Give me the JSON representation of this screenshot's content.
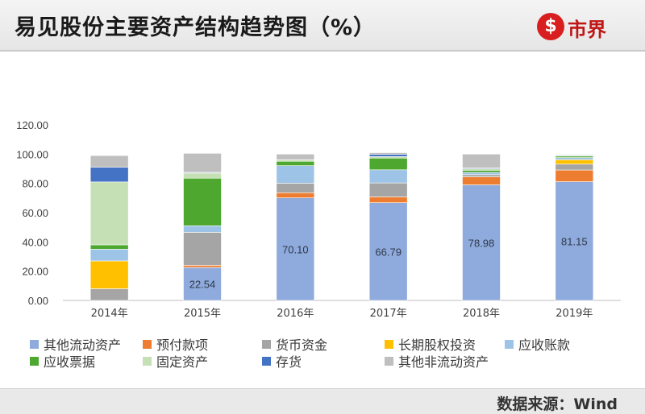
{
  "header": {
    "title": "易见股份主要资产结构趋势图（%）"
  },
  "logo": {
    "mark": "$",
    "text": "市界"
  },
  "source": "数据来源：Wind",
  "colors": {
    "其他流动资产": "#8faadc",
    "预付款项": "#ed7d31",
    "货币资金": "#a5a5a5",
    "长期股权投资": "#ffc000",
    "应收账款": "#9dc3e6",
    "应收票据": "#4ea72e",
    "固定资产": "#c5e0b4",
    "存货": "#4472c4",
    "其他非流动资产": "#bfbfbf"
  },
  "chart_data": {
    "type": "bar",
    "stacked": true,
    "categories": [
      "2014年",
      "2015年",
      "2016年",
      "2017年",
      "2018年",
      "2019年"
    ],
    "ylim": [
      0,
      120
    ],
    "yticks": [
      "0.00",
      "20.00",
      "40.00",
      "60.00",
      "80.00",
      "100.00",
      "120.00"
    ],
    "grid": false,
    "legend_position": "bottom",
    "series": [
      {
        "name": "其他流动资产",
        "values": [
          0,
          22.54,
          70.1,
          66.79,
          78.98,
          81.15
        ],
        "labels": [
          "",
          "22.54",
          "70.10",
          "66.79",
          "78.98",
          "81.15"
        ]
      },
      {
        "name": "预付款项",
        "values": [
          0,
          1.5,
          3.5,
          4.0,
          5.5,
          8.0
        ]
      },
      {
        "name": "货币资金",
        "values": [
          8.0,
          22.5,
          6.5,
          9.5,
          1.5,
          4.0
        ]
      },
      {
        "name": "长期股权投资",
        "values": [
          19.0,
          0,
          0,
          0,
          0,
          3.0
        ]
      },
      {
        "name": "应收账款",
        "values": [
          8.0,
          4.5,
          12.0,
          9.0,
          1.5,
          1.5
        ]
      },
      {
        "name": "应收票据",
        "values": [
          3.0,
          32.5,
          3.0,
          8.0,
          1.5,
          1.0
        ]
      },
      {
        "name": "固定资产",
        "values": [
          43.0,
          3.5,
          1.0,
          1.0,
          1.0,
          0.5
        ]
      },
      {
        "name": "存货",
        "values": [
          10.0,
          0.5,
          0,
          1.5,
          0.5,
          0.5
        ]
      },
      {
        "name": "其他非流动资产",
        "values": [
          8.0,
          13.0,
          3.9,
          1.21,
          9.52,
          0.35
        ]
      }
    ]
  }
}
